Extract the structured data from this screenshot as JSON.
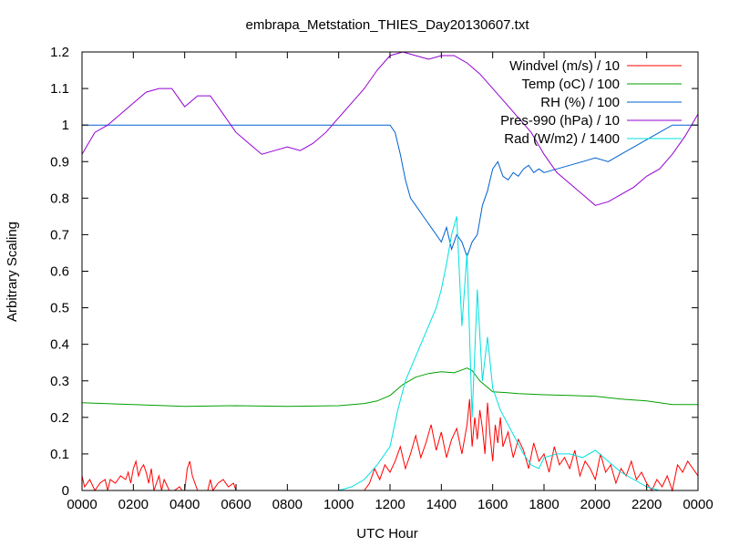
{
  "chart_data": {
    "type": "line",
    "title": "embrapa_Metstation_THIES_Day20130607.txt",
    "xlabel": "UTC Hour",
    "ylabel": "Arbitrary Scaling",
    "x_ticks": [
      "0000",
      "0200",
      "0400",
      "0600",
      "0800",
      "1000",
      "1200",
      "1400",
      "1600",
      "1800",
      "2000",
      "2200",
      "0000"
    ],
    "x_tick_hours": [
      0,
      2,
      4,
      6,
      8,
      10,
      12,
      14,
      16,
      18,
      20,
      22,
      24
    ],
    "y_ticks": [
      "0",
      "0.1",
      "0.2",
      "0.3",
      "0.4",
      "0.5",
      "0.6",
      "0.7",
      "0.8",
      "0.9",
      "1",
      "1.1",
      "1.2"
    ],
    "y_tick_values": [
      0,
      0.1,
      0.2,
      0.3,
      0.4,
      0.5,
      0.6,
      0.7,
      0.8,
      0.9,
      1.0,
      1.1,
      1.2
    ],
    "xlim_hours": [
      0,
      24
    ],
    "ylim": [
      0,
      1.2
    ],
    "grid": false,
    "legend_position": "top-right",
    "series": [
      {
        "name": "Windvel (m/s) / 10",
        "color": "#ff0000",
        "x": [
          0.0,
          0.1,
          0.3,
          0.5,
          0.7,
          0.9,
          1.0,
          1.1,
          1.3,
          1.5,
          1.7,
          1.8,
          1.9,
          2.0,
          2.1,
          2.2,
          2.3,
          2.4,
          2.5,
          2.6,
          2.7,
          2.8,
          2.9,
          3.0,
          3.1,
          3.2,
          3.4,
          3.6,
          3.8,
          3.9,
          4.0,
          4.1,
          4.2,
          4.3,
          4.5,
          4.7,
          4.9,
          5.0,
          5.1,
          5.3,
          5.5,
          5.7,
          5.9,
          6.0,
          6.5,
          7.0,
          8.0,
          9.0,
          10.0,
          10.5,
          10.8,
          11.0,
          11.2,
          11.4,
          11.6,
          11.8,
          12.0,
          12.2,
          12.4,
          12.6,
          12.8,
          13.0,
          13.2,
          13.4,
          13.6,
          13.8,
          14.0,
          14.2,
          14.4,
          14.6,
          14.8,
          15.0,
          15.1,
          15.2,
          15.3,
          15.4,
          15.5,
          15.6,
          15.7,
          15.8,
          15.9,
          16.0,
          16.1,
          16.2,
          16.3,
          16.4,
          16.6,
          16.8,
          17.0,
          17.2,
          17.4,
          17.6,
          17.8,
          18.0,
          18.2,
          18.4,
          18.6,
          18.8,
          19.0,
          19.2,
          19.4,
          19.6,
          19.8,
          20.0,
          20.2,
          20.4,
          20.6,
          20.8,
          21.0,
          21.2,
          21.4,
          21.6,
          21.8,
          22.0,
          22.2,
          22.4,
          22.6,
          22.8,
          23.0,
          23.2,
          23.4,
          23.6,
          23.8,
          24.0
        ],
        "values": [
          0.04,
          0.01,
          0.03,
          0.0,
          0.02,
          0.03,
          0.0,
          0.03,
          0.02,
          0.04,
          0.03,
          0.05,
          0.02,
          0.06,
          0.08,
          0.04,
          0.06,
          0.07,
          0.05,
          0.02,
          0.06,
          0.0,
          0.02,
          0.04,
          0.0,
          0.03,
          0.0,
          0.0,
          0.01,
          0.0,
          0.0,
          0.06,
          0.08,
          0.04,
          0.0,
          0.0,
          0.0,
          0.03,
          0.0,
          0.02,
          0.03,
          0.01,
          0.02,
          0.0,
          0.0,
          0.0,
          0.0,
          0.0,
          0.0,
          0.0,
          0.0,
          0.0,
          0.02,
          0.06,
          0.03,
          0.07,
          0.05,
          0.08,
          0.12,
          0.06,
          0.1,
          0.15,
          0.09,
          0.13,
          0.18,
          0.11,
          0.16,
          0.09,
          0.14,
          0.17,
          0.1,
          0.18,
          0.25,
          0.12,
          0.2,
          0.14,
          0.22,
          0.17,
          0.1,
          0.24,
          0.15,
          0.08,
          0.18,
          0.13,
          0.2,
          0.12,
          0.16,
          0.09,
          0.14,
          0.11,
          0.06,
          0.13,
          0.08,
          0.1,
          0.05,
          0.12,
          0.07,
          0.09,
          0.06,
          0.11,
          0.04,
          0.08,
          0.06,
          0.03,
          0.1,
          0.05,
          0.07,
          0.02,
          0.06,
          0.04,
          0.08,
          0.03,
          0.05,
          0.02,
          0.0,
          0.03,
          0.01,
          0.04,
          0.0,
          0.07,
          0.05,
          0.08,
          0.06,
          0.04
        ]
      },
      {
        "name": "Temp (oC) / 100",
        "color": "#00a000",
        "x": [
          0,
          2,
          4,
          6,
          8,
          10,
          11,
          11.5,
          12,
          12.5,
          13,
          13.5,
          14,
          14.5,
          15,
          15.2,
          15.5,
          16,
          16.5,
          17,
          18,
          19,
          20,
          21,
          22,
          23,
          24
        ],
        "values": [
          0.24,
          0.235,
          0.23,
          0.232,
          0.23,
          0.232,
          0.238,
          0.245,
          0.26,
          0.29,
          0.31,
          0.32,
          0.325,
          0.322,
          0.335,
          0.328,
          0.3,
          0.27,
          0.268,
          0.265,
          0.262,
          0.26,
          0.258,
          0.25,
          0.245,
          0.235,
          0.235
        ]
      },
      {
        "name": "RH (%) / 100",
        "color": "#0060d0",
        "x": [
          0,
          12,
          12.2,
          12.4,
          12.6,
          12.8,
          13.0,
          13.2,
          13.4,
          13.6,
          13.8,
          14.0,
          14.2,
          14.4,
          14.6,
          14.8,
          15.0,
          15.2,
          15.4,
          15.6,
          15.8,
          16.0,
          16.2,
          16.4,
          16.6,
          16.8,
          17.0,
          17.2,
          17.4,
          17.6,
          17.8,
          18.0,
          18.5,
          19.0,
          19.5,
          20.0,
          20.5,
          21.0,
          21.5,
          22.0,
          22.5,
          23.0,
          23.5,
          24.0
        ],
        "values": [
          1.0,
          1.0,
          0.98,
          0.92,
          0.85,
          0.8,
          0.78,
          0.76,
          0.74,
          0.72,
          0.7,
          0.68,
          0.72,
          0.66,
          0.7,
          0.68,
          0.64,
          0.68,
          0.7,
          0.78,
          0.82,
          0.88,
          0.9,
          0.86,
          0.85,
          0.87,
          0.86,
          0.88,
          0.89,
          0.87,
          0.88,
          0.87,
          0.88,
          0.89,
          0.9,
          0.91,
          0.9,
          0.92,
          0.94,
          0.96,
          0.98,
          1.0,
          1.0,
          1.0
        ]
      },
      {
        "name": "Pres-990 (hPa) / 10",
        "color": "#9400d3",
        "x": [
          0,
          0.5,
          1.0,
          1.5,
          2.0,
          2.5,
          3.0,
          3.5,
          4.0,
          4.5,
          5.0,
          5.5,
          6.0,
          6.5,
          7.0,
          7.5,
          8.0,
          8.5,
          9.0,
          9.5,
          10.0,
          10.5,
          11.0,
          11.5,
          12.0,
          12.5,
          13.0,
          13.5,
          14.0,
          14.5,
          15.0,
          15.5,
          16.0,
          16.5,
          17.0,
          17.5,
          18.0,
          18.5,
          19.0,
          19.5,
          20.0,
          20.5,
          21.0,
          21.5,
          22.0,
          22.5,
          23.0,
          23.5,
          24.0
        ],
        "values": [
          0.92,
          0.98,
          1.0,
          1.03,
          1.06,
          1.09,
          1.1,
          1.1,
          1.05,
          1.08,
          1.08,
          1.03,
          0.98,
          0.95,
          0.92,
          0.93,
          0.94,
          0.93,
          0.95,
          0.98,
          1.02,
          1.06,
          1.1,
          1.15,
          1.19,
          1.2,
          1.19,
          1.18,
          1.19,
          1.19,
          1.17,
          1.14,
          1.1,
          1.06,
          1.02,
          0.98,
          0.92,
          0.87,
          0.84,
          0.81,
          0.78,
          0.79,
          0.81,
          0.83,
          0.86,
          0.88,
          0.92,
          0.97,
          1.03
        ]
      },
      {
        "name": "Rad (W/m2) / 1400",
        "color": "#00e0e0",
        "x": [
          0,
          10,
          10.5,
          11,
          11.5,
          12,
          12.3,
          12.6,
          12.9,
          13.2,
          13.5,
          13.8,
          14.0,
          14.2,
          14.4,
          14.6,
          14.8,
          15.0,
          15.2,
          15.4,
          15.6,
          15.8,
          16.0,
          16.3,
          16.6,
          16.9,
          17.2,
          17.5,
          17.8,
          18.0,
          18.5,
          19.0,
          19.5,
          20.0,
          20.5,
          21.0,
          21.5,
          22.0,
          22.5,
          23.0,
          23.5,
          24.0
        ],
        "values": [
          0,
          0,
          0.01,
          0.03,
          0.07,
          0.12,
          0.22,
          0.3,
          0.35,
          0.4,
          0.45,
          0.5,
          0.55,
          0.62,
          0.7,
          0.75,
          0.45,
          0.65,
          0.2,
          0.55,
          0.3,
          0.42,
          0.28,
          0.22,
          0.18,
          0.14,
          0.1,
          0.07,
          0.06,
          0.09,
          0.1,
          0.1,
          0.09,
          0.11,
          0.08,
          0.05,
          0.03,
          0.01,
          0,
          0,
          0,
          0
        ]
      }
    ]
  }
}
